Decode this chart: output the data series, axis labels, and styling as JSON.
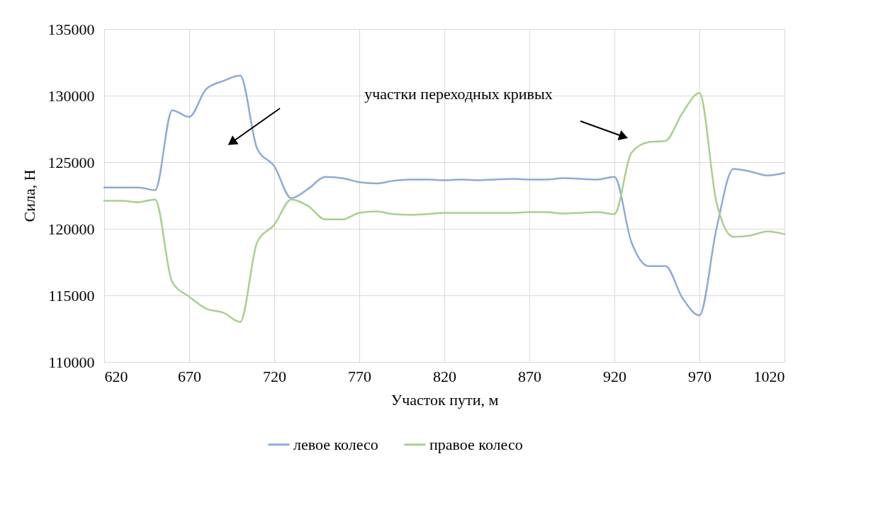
{
  "chart_data": {
    "type": "line",
    "xlabel": "Участок пути, м",
    "ylabel": "Сила, Н",
    "x": [
      620,
      630,
      640,
      650,
      660,
      670,
      680,
      690,
      700,
      710,
      720,
      730,
      740,
      750,
      760,
      770,
      780,
      790,
      800,
      810,
      820,
      830,
      840,
      850,
      860,
      870,
      880,
      890,
      900,
      910,
      920,
      930,
      940,
      950,
      960,
      970,
      980,
      990,
      1000,
      1010,
      1020
    ],
    "series": [
      {
        "name": "левое колесо",
        "color": "#8eaadb",
        "values": [
          123100,
          123100,
          123100,
          122900,
          128900,
          128400,
          130500,
          131100,
          131500,
          126000,
          124700,
          122300,
          123000,
          123900,
          123800,
          123500,
          123400,
          123600,
          123700,
          123700,
          123650,
          123700,
          123650,
          123700,
          123750,
          123700,
          123700,
          123800,
          123750,
          123700,
          123900,
          119000,
          117200,
          117200,
          114800,
          113500,
          120000,
          124500,
          124300,
          124000,
          124200
        ]
      },
      {
        "name": "правое колесо",
        "color": "#a8d08d",
        "values": [
          122100,
          122100,
          122000,
          122200,
          116000,
          114900,
          114000,
          113700,
          113000,
          119000,
          120300,
          122200,
          121700,
          120700,
          120700,
          121200,
          121300,
          121100,
          121050,
          121100,
          121200,
          121200,
          121200,
          121200,
          121200,
          121250,
          121250,
          121150,
          121200,
          121250,
          121100,
          125700,
          126500,
          126600,
          128700,
          130200,
          122000,
          119400,
          119500,
          119800,
          119600
        ]
      }
    ],
    "xlim": [
      620,
      1020
    ],
    "xticks": [
      620,
      670,
      720,
      770,
      820,
      870,
      920,
      970,
      1020
    ],
    "ylim": [
      110000,
      135000
    ],
    "yticks": [
      110000,
      115000,
      120000,
      125000,
      130000,
      135000
    ],
    "annotations": [
      "участки переходных кривых"
    ],
    "grid": true,
    "legend": "bottom",
    "marker": "none",
    "line_style": "solid"
  }
}
